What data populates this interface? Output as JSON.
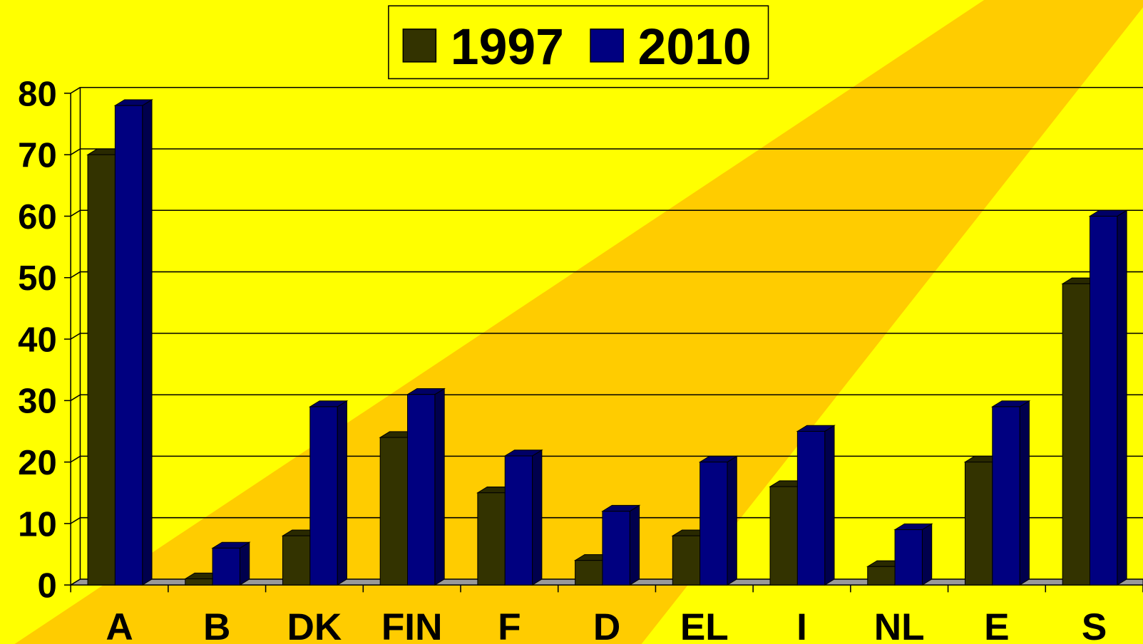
{
  "chart_data": {
    "type": "bar",
    "categories": [
      "A",
      "B",
      "DK",
      "FIN",
      "F",
      "D",
      "EL",
      "I",
      "NL",
      "E",
      "S"
    ],
    "series": [
      {
        "name": "1997",
        "color": "#333300",
        "values": [
          70,
          1,
          8,
          24,
          15,
          4,
          8,
          16,
          3,
          20,
          49
        ]
      },
      {
        "name": "2010",
        "color": "#000080",
        "values": [
          78,
          6,
          29,
          31,
          21,
          12,
          20,
          25,
          9,
          29,
          60
        ]
      }
    ],
    "ylim": [
      0,
      80
    ],
    "yticks": [
      0,
      10,
      20,
      30,
      40,
      50,
      60,
      70,
      80
    ],
    "grid": true,
    "legend": "top"
  }
}
